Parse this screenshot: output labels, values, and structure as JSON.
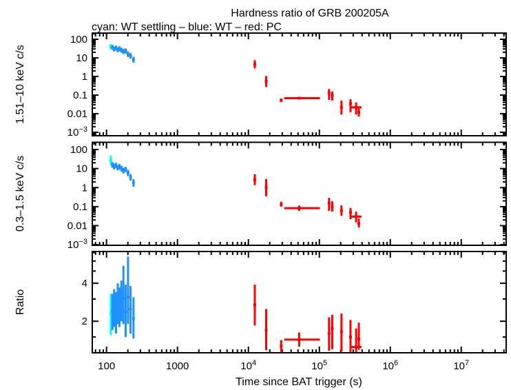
{
  "chart_data": {
    "type": "scatter",
    "title": "Hardness ratio of GRB 200205A",
    "subtitle": "cyan: WT settling – blue: WT – red: PC",
    "object": "GRB 200205A",
    "xlabel": "Time since BAT trigger (s)",
    "xscale": "log",
    "xlim": [
      63,
      43000000
    ],
    "xticks": {
      "major": [
        100,
        1000,
        10000,
        100000,
        1000000,
        10000000
      ],
      "labels": [
        "100",
        "1000",
        "10^4",
        "10^5",
        "10^6",
        "10^7"
      ],
      "minor": "auto"
    },
    "legend": [
      {
        "color": "cyan",
        "label": "WT settling"
      },
      {
        "color": "blue",
        "label": "WT"
      },
      {
        "color": "red",
        "label": "PC"
      }
    ],
    "colors": {
      "cyan": "#00ffff",
      "blue": "#1e90ff",
      "red": "#ff0000",
      "axis": "#000000",
      "text": "#000000",
      "background": "#ffffff"
    },
    "point_format": "[time_s, value, err_lo, err_hi, t_lo?, t_hi?]",
    "panels": [
      {
        "id": "hard-band",
        "ylabel": "1.51–10 keV c/s",
        "yscale": "log",
        "ylim": [
          0.00065,
          215
        ],
        "yticks": {
          "major": [
            100,
            10,
            1,
            0.1,
            0.01,
            0.001
          ],
          "labels": [
            "100",
            "10",
            "1",
            "0.1",
            "0.01",
            "10^-3"
          ],
          "minor": "auto"
        },
        "series": [
          {
            "name": "WT settling",
            "color": "cyan",
            "points": [
              [
                115,
                40,
                29,
                55
              ]
            ]
          },
          {
            "name": "WT",
            "color": "blue",
            "points": [
              [
                121,
                38,
                28,
                50
              ],
              [
                128,
                30,
                22,
                40
              ],
              [
                136,
                34,
                25,
                45
              ],
              [
                144,
                27,
                20,
                36
              ],
              [
                152,
                31,
                23,
                42
              ],
              [
                162,
                26,
                19,
                35
              ],
              [
                173,
                22,
                16,
                30
              ],
              [
                186,
                24,
                17,
                32
              ],
              [
                201,
                16,
                11,
                22
              ],
              [
                218,
                13,
                9,
                18
              ],
              [
                240,
                8,
                5.5,
                11.5
              ]
            ]
          },
          {
            "name": "PC",
            "color": "red",
            "points": [
              [
                12300,
                4.5,
                2.7,
                7.5
              ],
              [
                17800,
                0.55,
                0.27,
                1.05
              ],
              [
                29000,
                0.052,
                0.042,
                0.065
              ],
              [
                52000,
                0.068,
                0.057,
                0.081,
                32000,
                102000
              ],
              [
                137000,
                0.13,
                0.055,
                0.21
              ],
              [
                152000,
                0.095,
                0.05,
                0.155
              ],
              [
                205000,
                0.022,
                0.009,
                0.05
              ],
              [
                275000,
                0.035,
                0.012,
                0.06
              ],
              [
                330000,
                0.022,
                0.009,
                0.04,
                270000,
                393000
              ],
              [
                360000,
                0.012,
                0.007,
                0.02
              ]
            ]
          }
        ]
      },
      {
        "id": "soft-band",
        "ylabel": "0.3–1.5 keV c/s",
        "yscale": "log",
        "ylim": [
          0.00093,
          240
        ],
        "yticks": {
          "major": [
            100,
            10,
            1,
            0.1,
            0.01,
            0.001
          ],
          "labels": [
            "100",
            "10",
            "1",
            "0.1",
            "0.01",
            "10^-3"
          ],
          "minor": "auto"
        },
        "series": [
          {
            "name": "WT settling",
            "color": "cyan",
            "points": [
              [
                115,
                27,
                15,
                48
              ]
            ]
          },
          {
            "name": "WT",
            "color": "blue",
            "points": [
              [
                121,
                16,
                11,
                22
              ],
              [
                128,
                13,
                9,
                18
              ],
              [
                136,
                15,
                10.5,
                20
              ],
              [
                144,
                11,
                8,
                15
              ],
              [
                152,
                13,
                9,
                17.5
              ],
              [
                162,
                10,
                7,
                14
              ],
              [
                173,
                8,
                5.5,
                11
              ],
              [
                186,
                9,
                6.5,
                12.5
              ],
              [
                201,
                6,
                4,
                8.5
              ],
              [
                218,
                3.5,
                2.3,
                5
              ],
              [
                240,
                1.8,
                1.1,
                2.8
              ]
            ]
          },
          {
            "name": "PC",
            "color": "red",
            "points": [
              [
                12300,
                2.6,
                1.35,
                5.0
              ],
              [
                17800,
                1.0,
                0.35,
                2.8
              ],
              [
                29000,
                0.13,
                0.1,
                0.18
              ],
              [
                52000,
                0.083,
                0.06,
                0.115,
                32000,
                102000
              ],
              [
                137000,
                0.15,
                0.06,
                0.29
              ],
              [
                152000,
                0.1,
                0.055,
                0.19
              ],
              [
                205000,
                0.06,
                0.033,
                0.115
              ],
              [
                275000,
                0.05,
                0.022,
                0.085
              ],
              [
                330000,
                0.03,
                0.015,
                0.055,
                270000,
                393000
              ],
              [
                360000,
                0.013,
                0.008,
                0.024
              ]
            ]
          }
        ]
      },
      {
        "id": "ratio",
        "ylabel": "Ratio",
        "yscale": "log",
        "ylim": [
          1.125,
          7.14
        ],
        "yticks": {
          "major": [
            4,
            2
          ],
          "labels": [
            "4",
            "2"
          ],
          "minor": [
            1.5,
            3,
            5,
            6,
            7
          ]
        },
        "series": [
          {
            "name": "WT settling",
            "color": "cyan",
            "points": [
              [
                115,
                2.3,
                1.55,
                3.3
              ]
            ]
          },
          {
            "name": "WT",
            "color": "blue",
            "points": [
              [
                121,
                2.4,
                1.7,
                3.3
              ],
              [
                128,
                2.6,
                1.8,
                3.6
              ],
              [
                136,
                2.3,
                1.6,
                3.4
              ],
              [
                144,
                2.8,
                1.9,
                4.0
              ],
              [
                152,
                2.5,
                1.8,
                3.7
              ],
              [
                162,
                2.9,
                2.0,
                4.2
              ],
              [
                173,
                3.0,
                1.9,
                5.5
              ],
              [
                186,
                2.4,
                1.5,
                3.9
              ],
              [
                201,
                3.1,
                1.9,
                6.5
              ],
              [
                218,
                2.5,
                1.6,
                3.8
              ],
              [
                240,
                2.1,
                1.46,
                3.1
              ]
            ]
          },
          {
            "name": "PC",
            "color": "red",
            "points": [
              [
                12300,
                2.7,
                1.85,
                3.9
              ],
              [
                17800,
                1.7,
                1.18,
                2.5
              ],
              [
                29000,
                1.27,
                1.14,
                1.42
              ],
              [
                52000,
                1.43,
                1.26,
                1.63,
                32000,
                102000
              ],
              [
                137000,
                1.6,
                1.17,
                2.15
              ],
              [
                152000,
                1.75,
                1.2,
                2.25
              ],
              [
                205000,
                1.65,
                1.15,
                2.3
              ],
              [
                275000,
                1.5,
                1.12,
                2.05
              ],
              [
                330000,
                1.25,
                1.13,
                1.75,
                270000,
                393000
              ],
              [
                360000,
                1.45,
                1.19,
                1.95
              ]
            ]
          }
        ]
      }
    ]
  }
}
